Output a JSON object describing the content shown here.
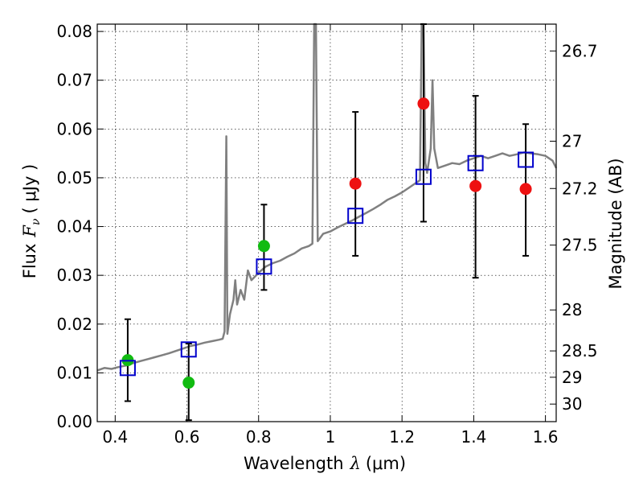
{
  "chart_data": {
    "type": "scatter",
    "xlabel": "Wavelength",
    "xlabel_symbol": "λ",
    "xlabel_unit": "(μm)",
    "ylabel": "Flux",
    "ylabel_symbol": "F",
    "ylabel_subscript": "ν",
    "ylabel_unit": "( μJy )",
    "ylabel_right": "Magnitude (AB)",
    "xlim": [
      0.35,
      1.63
    ],
    "ylim": [
      0.0,
      0.0815
    ],
    "grid": true,
    "x_ticks": [
      {
        "value": 0.4,
        "label": "0.4"
      },
      {
        "value": 0.6,
        "label": "0.6"
      },
      {
        "value": 0.8,
        "label": "0.8"
      },
      {
        "value": 1.0,
        "label": "1"
      },
      {
        "value": 1.2,
        "label": "1.2"
      },
      {
        "value": 1.4,
        "label": "1.4"
      },
      {
        "value": 1.6,
        "label": "1.6"
      }
    ],
    "y_ticks": [
      {
        "value": 0.0,
        "label": "0.00"
      },
      {
        "value": 0.01,
        "label": "0.01"
      },
      {
        "value": 0.02,
        "label": "0.02"
      },
      {
        "value": 0.03,
        "label": "0.03"
      },
      {
        "value": 0.04,
        "label": "0.04"
      },
      {
        "value": 0.05,
        "label": "0.05"
      },
      {
        "value": 0.06,
        "label": "0.06"
      },
      {
        "value": 0.07,
        "label": "0.07"
      },
      {
        "value": 0.08,
        "label": "0.08"
      }
    ],
    "right_ticks": [
      {
        "flux": 0.076,
        "label": "26.7"
      },
      {
        "flux": 0.0575,
        "label": "27"
      },
      {
        "flux": 0.0478,
        "label": "27.2"
      },
      {
        "flux": 0.0362,
        "label": "27.5"
      },
      {
        "flux": 0.0229,
        "label": "28"
      },
      {
        "flux": 0.0145,
        "label": "28.5"
      },
      {
        "flux": 0.0091,
        "label": "29"
      },
      {
        "flux": 0.0036,
        "label": "30"
      }
    ],
    "colors": {
      "model": "#808080",
      "green": "#11bb11",
      "red": "#ee1111",
      "box": "#0000cc",
      "error": "#000000"
    },
    "model_spectrum": [
      [
        0.35,
        0.0105
      ],
      [
        0.37,
        0.011
      ],
      [
        0.39,
        0.0108
      ],
      [
        0.41,
        0.0112
      ],
      [
        0.43,
        0.0115
      ],
      [
        0.45,
        0.012
      ],
      [
        0.47,
        0.0124
      ],
      [
        0.49,
        0.0128
      ],
      [
        0.51,
        0.0132
      ],
      [
        0.53,
        0.0136
      ],
      [
        0.55,
        0.014
      ],
      [
        0.57,
        0.0145
      ],
      [
        0.59,
        0.015
      ],
      [
        0.61,
        0.0155
      ],
      [
        0.63,
        0.0158
      ],
      [
        0.65,
        0.0162
      ],
      [
        0.67,
        0.0165
      ],
      [
        0.69,
        0.0168
      ],
      [
        0.7,
        0.017
      ],
      [
        0.705,
        0.0185
      ],
      [
        0.71,
        0.0585
      ],
      [
        0.713,
        0.018
      ],
      [
        0.72,
        0.022
      ],
      [
        0.73,
        0.025
      ],
      [
        0.735,
        0.029
      ],
      [
        0.74,
        0.024
      ],
      [
        0.75,
        0.027
      ],
      [
        0.76,
        0.025
      ],
      [
        0.77,
        0.031
      ],
      [
        0.78,
        0.029
      ],
      [
        0.8,
        0.0305
      ],
      [
        0.82,
        0.0318
      ],
      [
        0.84,
        0.0325
      ],
      [
        0.86,
        0.033
      ],
      [
        0.88,
        0.0338
      ],
      [
        0.9,
        0.0345
      ],
      [
        0.92,
        0.0355
      ],
      [
        0.94,
        0.036
      ],
      [
        0.95,
        0.0365
      ],
      [
        0.955,
        0.0815
      ],
      [
        0.96,
        0.0815
      ],
      [
        0.965,
        0.037
      ],
      [
        0.98,
        0.0385
      ],
      [
        1.0,
        0.039
      ],
      [
        1.02,
        0.0398
      ],
      [
        1.04,
        0.0405
      ],
      [
        1.06,
        0.0412
      ],
      [
        1.08,
        0.042
      ],
      [
        1.1,
        0.0428
      ],
      [
        1.12,
        0.0436
      ],
      [
        1.14,
        0.0445
      ],
      [
        1.16,
        0.0455
      ],
      [
        1.18,
        0.0462
      ],
      [
        1.2,
        0.047
      ],
      [
        1.22,
        0.048
      ],
      [
        1.24,
        0.049
      ],
      [
        1.25,
        0.0495
      ],
      [
        1.255,
        0.0815
      ],
      [
        1.26,
        0.0815
      ],
      [
        1.265,
        0.053
      ],
      [
        1.27,
        0.051
      ],
      [
        1.28,
        0.056
      ],
      [
        1.285,
        0.07
      ],
      [
        1.29,
        0.056
      ],
      [
        1.3,
        0.052
      ],
      [
        1.32,
        0.0525
      ],
      [
        1.34,
        0.053
      ],
      [
        1.36,
        0.0528
      ],
      [
        1.38,
        0.0535
      ],
      [
        1.4,
        0.054
      ],
      [
        1.42,
        0.0545
      ],
      [
        1.44,
        0.054
      ],
      [
        1.46,
        0.0545
      ],
      [
        1.48,
        0.055
      ],
      [
        1.5,
        0.0545
      ],
      [
        1.52,
        0.0548
      ],
      [
        1.54,
        0.0552
      ],
      [
        1.56,
        0.055
      ],
      [
        1.58,
        0.0548
      ],
      [
        1.6,
        0.0545
      ],
      [
        1.62,
        0.0535
      ],
      [
        1.63,
        0.052
      ]
    ],
    "series": [
      {
        "name": "observed-green",
        "color_key": "green",
        "marker": "circle",
        "points": [
          {
            "x": 0.435,
            "y": 0.0126,
            "ylo": 0.0042,
            "yhi": 0.021
          },
          {
            "x": 0.605,
            "y": 0.008,
            "ylo": 0.0003,
            "yhi": 0.016
          }
        ]
      },
      {
        "name": "observed-red",
        "color_key": "red",
        "marker": "circle",
        "points": [
          {
            "x": 1.07,
            "y": 0.0488,
            "ylo": 0.034,
            "yhi": 0.0635
          },
          {
            "x": 1.26,
            "y": 0.0652,
            "ylo": 0.041,
            "yhi": 0.0815
          },
          {
            "x": 1.405,
            "y": 0.0483,
            "ylo": 0.0295,
            "yhi": 0.0668
          },
          {
            "x": 1.545,
            "y": 0.0477,
            "ylo": 0.034,
            "yhi": 0.061
          }
        ]
      },
      {
        "name": "synthetic-green-err",
        "color_key": "green",
        "marker": "none",
        "points": [
          {
            "x": 0.815,
            "y": 0.036,
            "ylo": 0.027,
            "yhi": 0.0445
          }
        ]
      },
      {
        "name": "model-photometry",
        "color_key": "box",
        "marker": "square",
        "points": [
          {
            "x": 0.435,
            "y": 0.011
          },
          {
            "x": 0.605,
            "y": 0.0148
          },
          {
            "x": 0.815,
            "y": 0.0318
          },
          {
            "x": 1.07,
            "y": 0.0422
          },
          {
            "x": 1.26,
            "y": 0.0502
          },
          {
            "x": 1.405,
            "y": 0.053
          },
          {
            "x": 1.545,
            "y": 0.0537
          }
        ]
      }
    ]
  }
}
